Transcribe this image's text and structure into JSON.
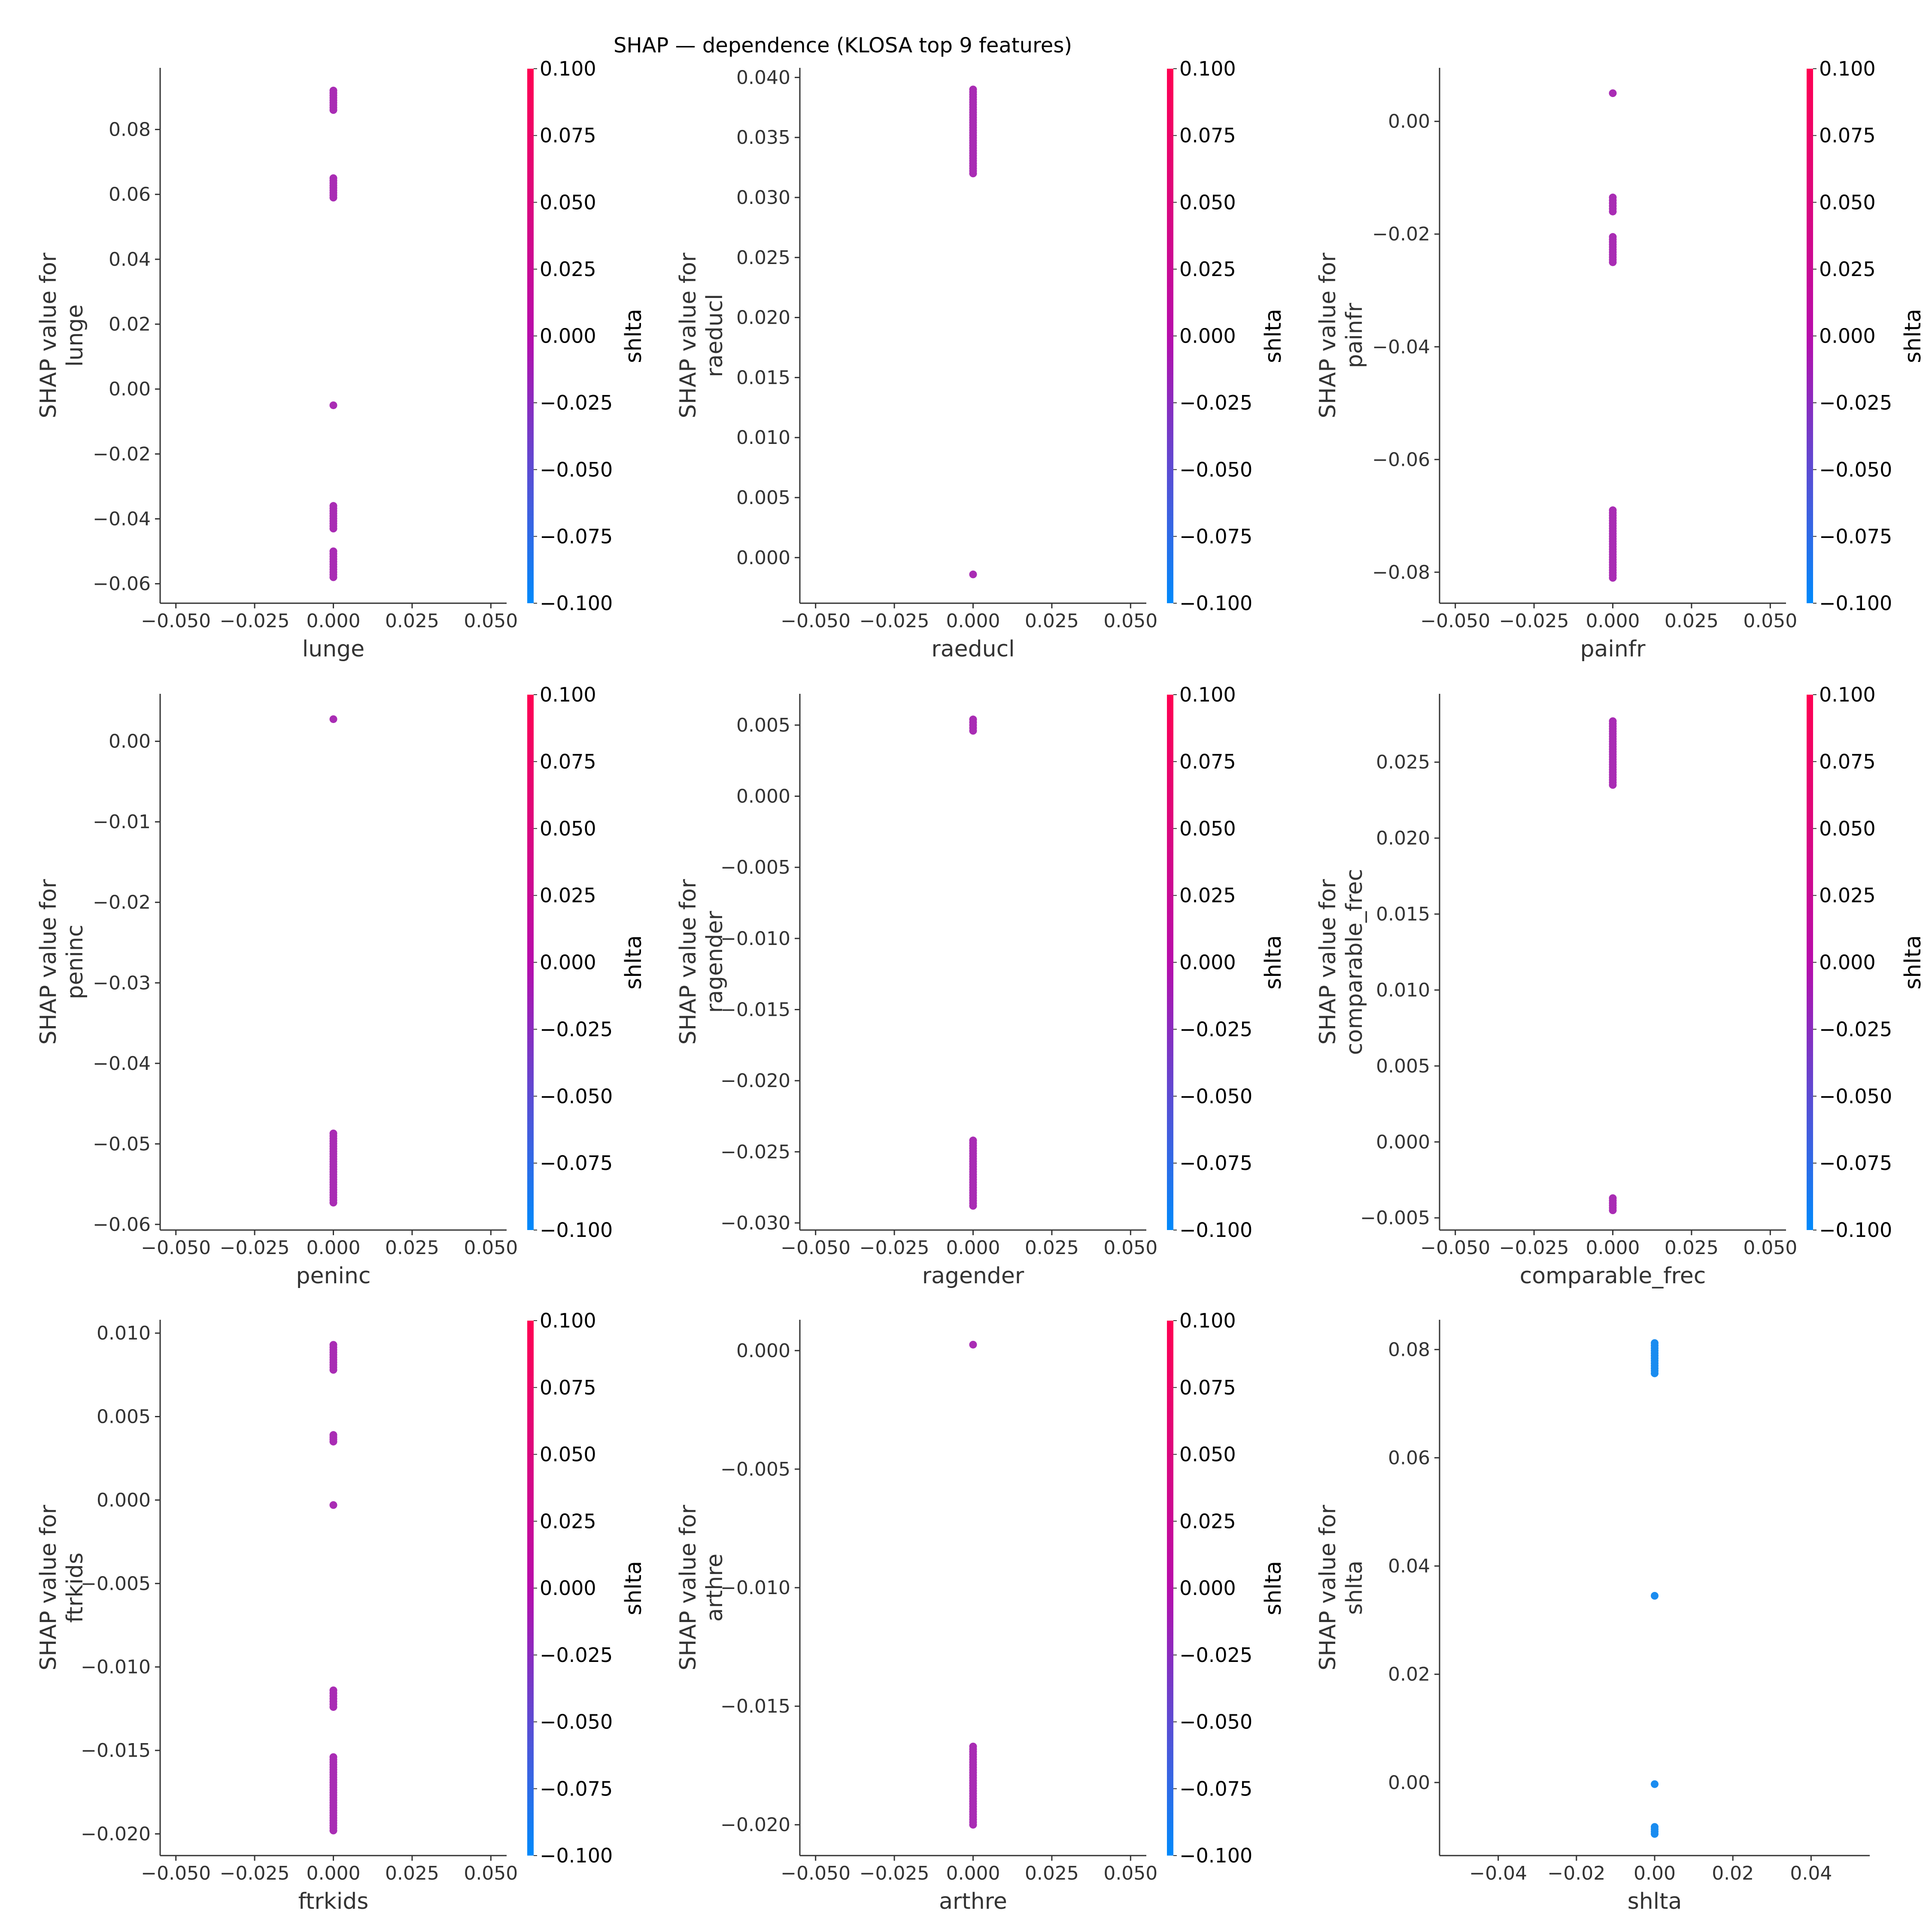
{
  "figure": {
    "title": "SHAP — dependence (KLOSA top 9 features)"
  },
  "colors": {
    "text": "#333333",
    "cbar_low": "#008afb",
    "cbar_mid": "#b70dab",
    "cbar_high": "#ff0052",
    "point_default": "#a92cb4",
    "point_shlta": "#1a8cf0"
  },
  "chart_data": [
    {
      "type": "scatter",
      "xlabel": "lunge",
      "ylabel": "SHAP value for\nlunge",
      "xlim": [
        -0.055,
        0.055
      ],
      "ylim": [
        -0.066,
        0.099
      ],
      "xticks": [
        "−0.050",
        "−0.025",
        "0.000",
        "0.025",
        "0.050"
      ],
      "xtick_values": [
        -0.05,
        -0.025,
        0,
        0.025,
        0.05
      ],
      "yticks": [
        "−0.06",
        "−0.04",
        "−0.02",
        "0.00",
        "0.02",
        "0.04",
        "0.06",
        "0.08"
      ],
      "ytick_values": [
        -0.06,
        -0.04,
        -0.02,
        0,
        0.02,
        0.04,
        0.06,
        0.08
      ],
      "colorbar": {
        "label": "shlta",
        "ticks": [
          "−0.100",
          "−0.075",
          "−0.050",
          "−0.025",
          "0.000",
          "0.025",
          "0.050",
          "0.075",
          "0.100"
        ]
      },
      "x": 0.0,
      "y_ranges": [
        [
          0.086,
          0.092
        ],
        [
          0.059,
          0.065
        ],
        [
          -0.005,
          -0.005
        ],
        [
          -0.043,
          -0.036
        ],
        [
          -0.058,
          -0.05
        ]
      ]
    },
    {
      "type": "scatter",
      "xlabel": "raeducl",
      "ylabel": "SHAP value for\nraeducl",
      "xlim": [
        -0.055,
        0.055
      ],
      "ylim": [
        -0.0038,
        0.0408
      ],
      "xticks": [
        "−0.050",
        "−0.025",
        "0.000",
        "0.025",
        "0.050"
      ],
      "xtick_values": [
        -0.05,
        -0.025,
        0,
        0.025,
        0.05
      ],
      "yticks": [
        "0.000",
        "0.005",
        "0.010",
        "0.015",
        "0.020",
        "0.025",
        "0.030",
        "0.035",
        "0.040"
      ],
      "ytick_values": [
        0,
        0.005,
        0.01,
        0.015,
        0.02,
        0.025,
        0.03,
        0.035,
        0.04
      ],
      "colorbar": {
        "label": "shlta",
        "ticks": [
          "−0.100",
          "−0.075",
          "−0.050",
          "−0.025",
          "0.000",
          "0.025",
          "0.050",
          "0.075",
          "0.100"
        ]
      },
      "x": 0.0,
      "y_ranges": [
        [
          0.032,
          0.039
        ],
        [
          -0.0016,
          -0.0012
        ]
      ]
    },
    {
      "type": "scatter",
      "xlabel": "painfr",
      "ylabel": "SHAP value for\npainfr",
      "xlim": [
        -0.055,
        0.055
      ],
      "ylim": [
        -0.0855,
        0.0095
      ],
      "xticks": [
        "−0.050",
        "−0.025",
        "0.000",
        "0.025",
        "0.050"
      ],
      "xtick_values": [
        -0.05,
        -0.025,
        0,
        0.025,
        0.05
      ],
      "yticks": [
        "−0.08",
        "−0.06",
        "−0.04",
        "−0.02",
        "0.00"
      ],
      "ytick_values": [
        -0.08,
        -0.06,
        -0.04,
        -0.02,
        0
      ],
      "colorbar": {
        "label": "shlta",
        "ticks": [
          "−0.100",
          "−0.075",
          "−0.050",
          "−0.025",
          "0.000",
          "0.025",
          "0.050",
          "0.075",
          "0.100"
        ]
      },
      "x": 0.0,
      "y_ranges": [
        [
          0.005,
          0.005
        ],
        [
          -0.016,
          -0.0135
        ],
        [
          -0.025,
          -0.0205
        ],
        [
          -0.081,
          -0.069
        ]
      ]
    },
    {
      "type": "scatter",
      "xlabel": "peninc",
      "ylabel": "SHAP value for\npeninc",
      "xlim": [
        -0.055,
        0.055
      ],
      "ylim": [
        -0.0607,
        0.0059
      ],
      "xticks": [
        "−0.050",
        "−0.025",
        "0.000",
        "0.025",
        "0.050"
      ],
      "xtick_values": [
        -0.05,
        -0.025,
        0,
        0.025,
        0.05
      ],
      "yticks": [
        "−0.06",
        "−0.05",
        "−0.04",
        "−0.03",
        "−0.02",
        "−0.01",
        "0.00"
      ],
      "ytick_values": [
        -0.06,
        -0.05,
        -0.04,
        -0.03,
        -0.02,
        -0.01,
        0
      ],
      "colorbar": {
        "label": "shlta",
        "ticks": [
          "−0.100",
          "−0.075",
          "−0.050",
          "−0.025",
          "0.000",
          "0.025",
          "0.050",
          "0.075",
          "0.100"
        ]
      },
      "x": 0.0,
      "y_ranges": [
        [
          0.0025,
          0.003
        ],
        [
          -0.0573,
          -0.0487
        ]
      ]
    },
    {
      "type": "scatter",
      "xlabel": "ragender",
      "ylabel": "SHAP value for\nragender",
      "xlim": [
        -0.055,
        0.055
      ],
      "ylim": [
        -0.0305,
        0.0072
      ],
      "xticks": [
        "−0.050",
        "−0.025",
        "0.000",
        "0.025",
        "0.050"
      ],
      "xtick_values": [
        -0.05,
        -0.025,
        0,
        0.025,
        0.05
      ],
      "yticks": [
        "−0.030",
        "−0.025",
        "−0.020",
        "−0.015",
        "−0.010",
        "−0.005",
        "0.000",
        "0.005"
      ],
      "ytick_values": [
        -0.03,
        -0.025,
        -0.02,
        -0.015,
        -0.01,
        -0.005,
        0,
        0.005
      ],
      "colorbar": {
        "label": "shlta",
        "ticks": [
          "−0.100",
          "−0.075",
          "−0.050",
          "−0.025",
          "0.000",
          "0.025",
          "0.050",
          "0.075",
          "0.100"
        ]
      },
      "x": 0.0,
      "y_ranges": [
        [
          0.0046,
          0.0054
        ],
        [
          -0.0288,
          -0.0242
        ]
      ]
    },
    {
      "type": "scatter",
      "xlabel": "comparable_frec",
      "ylabel": "SHAP value for\ncomparable_frec",
      "xlim": [
        -0.055,
        0.055
      ],
      "ylim": [
        -0.0058,
        0.0295
      ],
      "xticks": [
        "−0.050",
        "−0.025",
        "0.000",
        "0.025",
        "0.050"
      ],
      "xtick_values": [
        -0.05,
        -0.025,
        0,
        0.025,
        0.05
      ],
      "yticks": [
        "−0.005",
        "0.000",
        "0.005",
        "0.010",
        "0.015",
        "0.020",
        "0.025"
      ],
      "ytick_values": [
        -0.005,
        0,
        0.005,
        0.01,
        0.015,
        0.02,
        0.025
      ],
      "colorbar": {
        "label": "shlta",
        "ticks": [
          "−0.100",
          "−0.075",
          "−0.050",
          "−0.025",
          "0.000",
          "0.025",
          "0.050",
          "0.075",
          "0.100"
        ]
      },
      "x": 0.0,
      "y_ranges": [
        [
          0.0235,
          0.0277
        ],
        [
          -0.0045,
          -0.0037
        ]
      ]
    },
    {
      "type": "scatter",
      "xlabel": "ftrkids",
      "ylabel": "SHAP value for\nftrkids",
      "xlim": [
        -0.055,
        0.055
      ],
      "ylim": [
        -0.0213,
        0.0108
      ],
      "xticks": [
        "−0.050",
        "−0.025",
        "0.000",
        "0.025",
        "0.050"
      ],
      "xtick_values": [
        -0.05,
        -0.025,
        0,
        0.025,
        0.05
      ],
      "yticks": [
        "−0.020",
        "−0.015",
        "−0.010",
        "−0.005",
        "0.000",
        "0.005",
        "0.010"
      ],
      "ytick_values": [
        -0.02,
        -0.015,
        -0.01,
        -0.005,
        0,
        0.005,
        0.01
      ],
      "colorbar": {
        "label": "shlta",
        "ticks": [
          "−0.100",
          "−0.075",
          "−0.050",
          "−0.025",
          "0.000",
          "0.025",
          "0.050",
          "0.075",
          "0.100"
        ]
      },
      "x": 0.0,
      "y_ranges": [
        [
          0.0078,
          0.0093
        ],
        [
          0.0035,
          0.0039
        ],
        [
          -0.0004,
          -0.0002
        ],
        [
          -0.0124,
          -0.0114
        ],
        [
          -0.0198,
          -0.0154
        ]
      ]
    },
    {
      "type": "scatter",
      "xlabel": "arthre",
      "ylabel": "SHAP value for\narthre",
      "xlim": [
        -0.055,
        0.055
      ],
      "ylim": [
        -0.0213,
        0.0013
      ],
      "xticks": [
        "−0.050",
        "−0.025",
        "0.000",
        "0.025",
        "0.050"
      ],
      "xtick_values": [
        -0.05,
        -0.025,
        0,
        0.025,
        0.05
      ],
      "yticks": [
        "−0.020",
        "−0.015",
        "−0.010",
        "−0.005",
        "0.000"
      ],
      "ytick_values": [
        -0.02,
        -0.015,
        -0.01,
        -0.005,
        0
      ],
      "colorbar": {
        "label": "shlta",
        "ticks": [
          "−0.100",
          "−0.075",
          "−0.050",
          "−0.025",
          "0.000",
          "0.025",
          "0.050",
          "0.075",
          "0.100"
        ]
      },
      "x": 0.0,
      "y_ranges": [
        [
          0.0002,
          0.0003
        ],
        [
          -0.02,
          -0.0167
        ]
      ]
    },
    {
      "type": "scatter",
      "xlabel": "shlta",
      "ylabel": "SHAP value for\nshlta",
      "xlim": [
        -0.055,
        0.055
      ],
      "ylim": [
        -0.0135,
        0.0855
      ],
      "xticks": [
        "−0.04",
        "−0.02",
        "0.00",
        "0.02",
        "0.04"
      ],
      "xtick_values": [
        -0.04,
        -0.02,
        0,
        0.02,
        0.04
      ],
      "yticks": [
        "0.00",
        "0.02",
        "0.04",
        "0.06",
        "0.08"
      ],
      "ytick_values": [
        0,
        0.02,
        0.04,
        0.06,
        0.08
      ],
      "colorbar": null,
      "x": 0.0,
      "y_ranges": [
        [
          0.0756,
          0.0812
        ],
        [
          0.0345,
          0.0345
        ],
        [
          -0.0003,
          -0.0003
        ],
        [
          -0.0095,
          -0.0082
        ]
      ]
    }
  ]
}
